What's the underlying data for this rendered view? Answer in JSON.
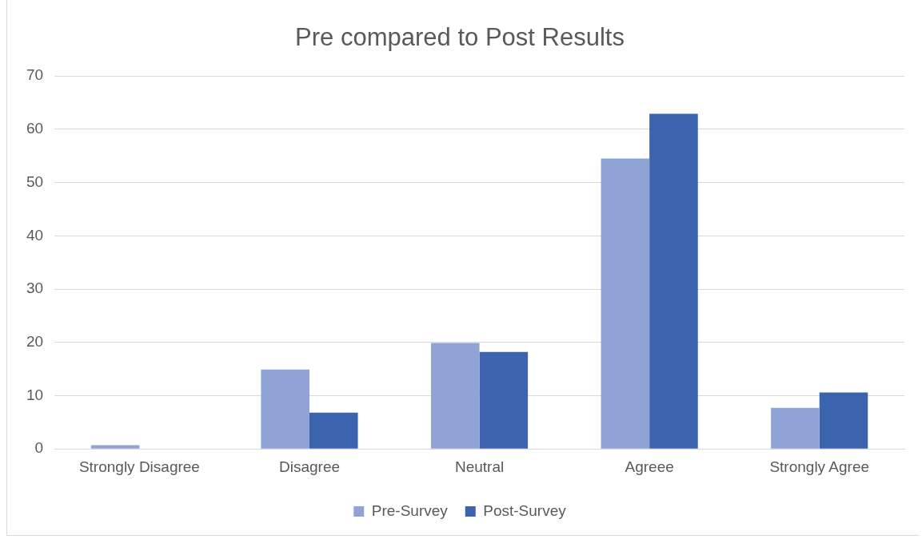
{
  "chart_data": {
    "type": "bar",
    "title": "Pre compared to Post Results",
    "categories": [
      "Strongly Disagree",
      "Disagree",
      "Neutral",
      "Agreee",
      "Strongly Agree"
    ],
    "series": [
      {
        "name": "Pre-Survey",
        "color": "#8fa4d5",
        "values": [
          0.7,
          14.9,
          19.9,
          54.5,
          7.7
        ]
      },
      {
        "name": "Post-Survey",
        "color": "#3c64ae",
        "values": [
          0,
          6.8,
          18.2,
          62.9,
          10.6
        ]
      }
    ],
    "ylim": [
      0,
      70
    ],
    "yticks": [
      0,
      10,
      20,
      30,
      40,
      50,
      60,
      70
    ],
    "grid": "y",
    "legend": "bottom"
  }
}
